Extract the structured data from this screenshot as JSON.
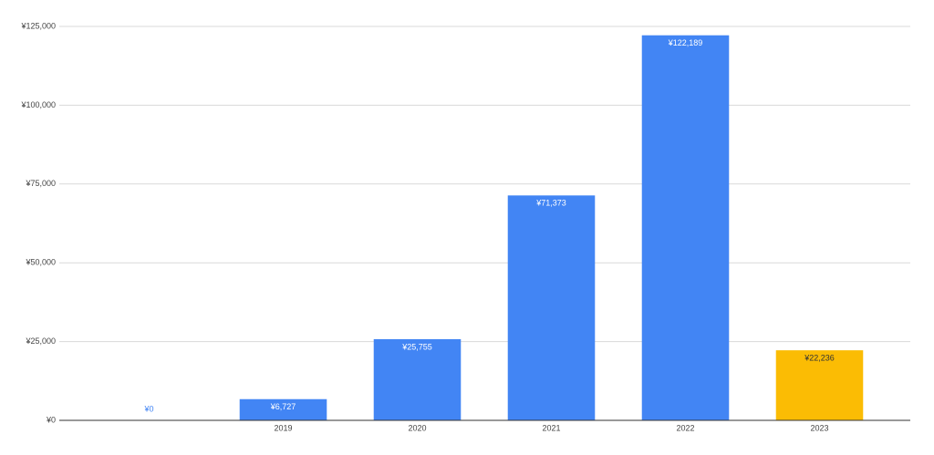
{
  "chart_data": {
    "type": "bar",
    "categories": [
      null,
      "2019",
      "2020",
      "2021",
      "2022",
      "2023"
    ],
    "values": [
      0,
      6727,
      25755,
      71373,
      122189,
      22236
    ],
    "value_labels": [
      "¥0",
      "¥6,727",
      "¥25,755",
      "¥71,373",
      "¥122,189",
      "¥22,236"
    ],
    "colors": [
      "#4285f4",
      "#4285f4",
      "#4285f4",
      "#4285f4",
      "#4285f4",
      "#fbbc04"
    ],
    "ylim": [
      0,
      125000
    ],
    "yticks": [
      {
        "value": 0,
        "label": "¥0"
      },
      {
        "value": 25000,
        "label": "¥25,000"
      },
      {
        "value": 50000,
        "label": "¥50,000"
      },
      {
        "value": 75000,
        "label": "¥75,000"
      },
      {
        "value": 100000,
        "label": "¥100,000"
      },
      {
        "value": 125000,
        "label": "¥125,000"
      }
    ],
    "grid": true
  }
}
